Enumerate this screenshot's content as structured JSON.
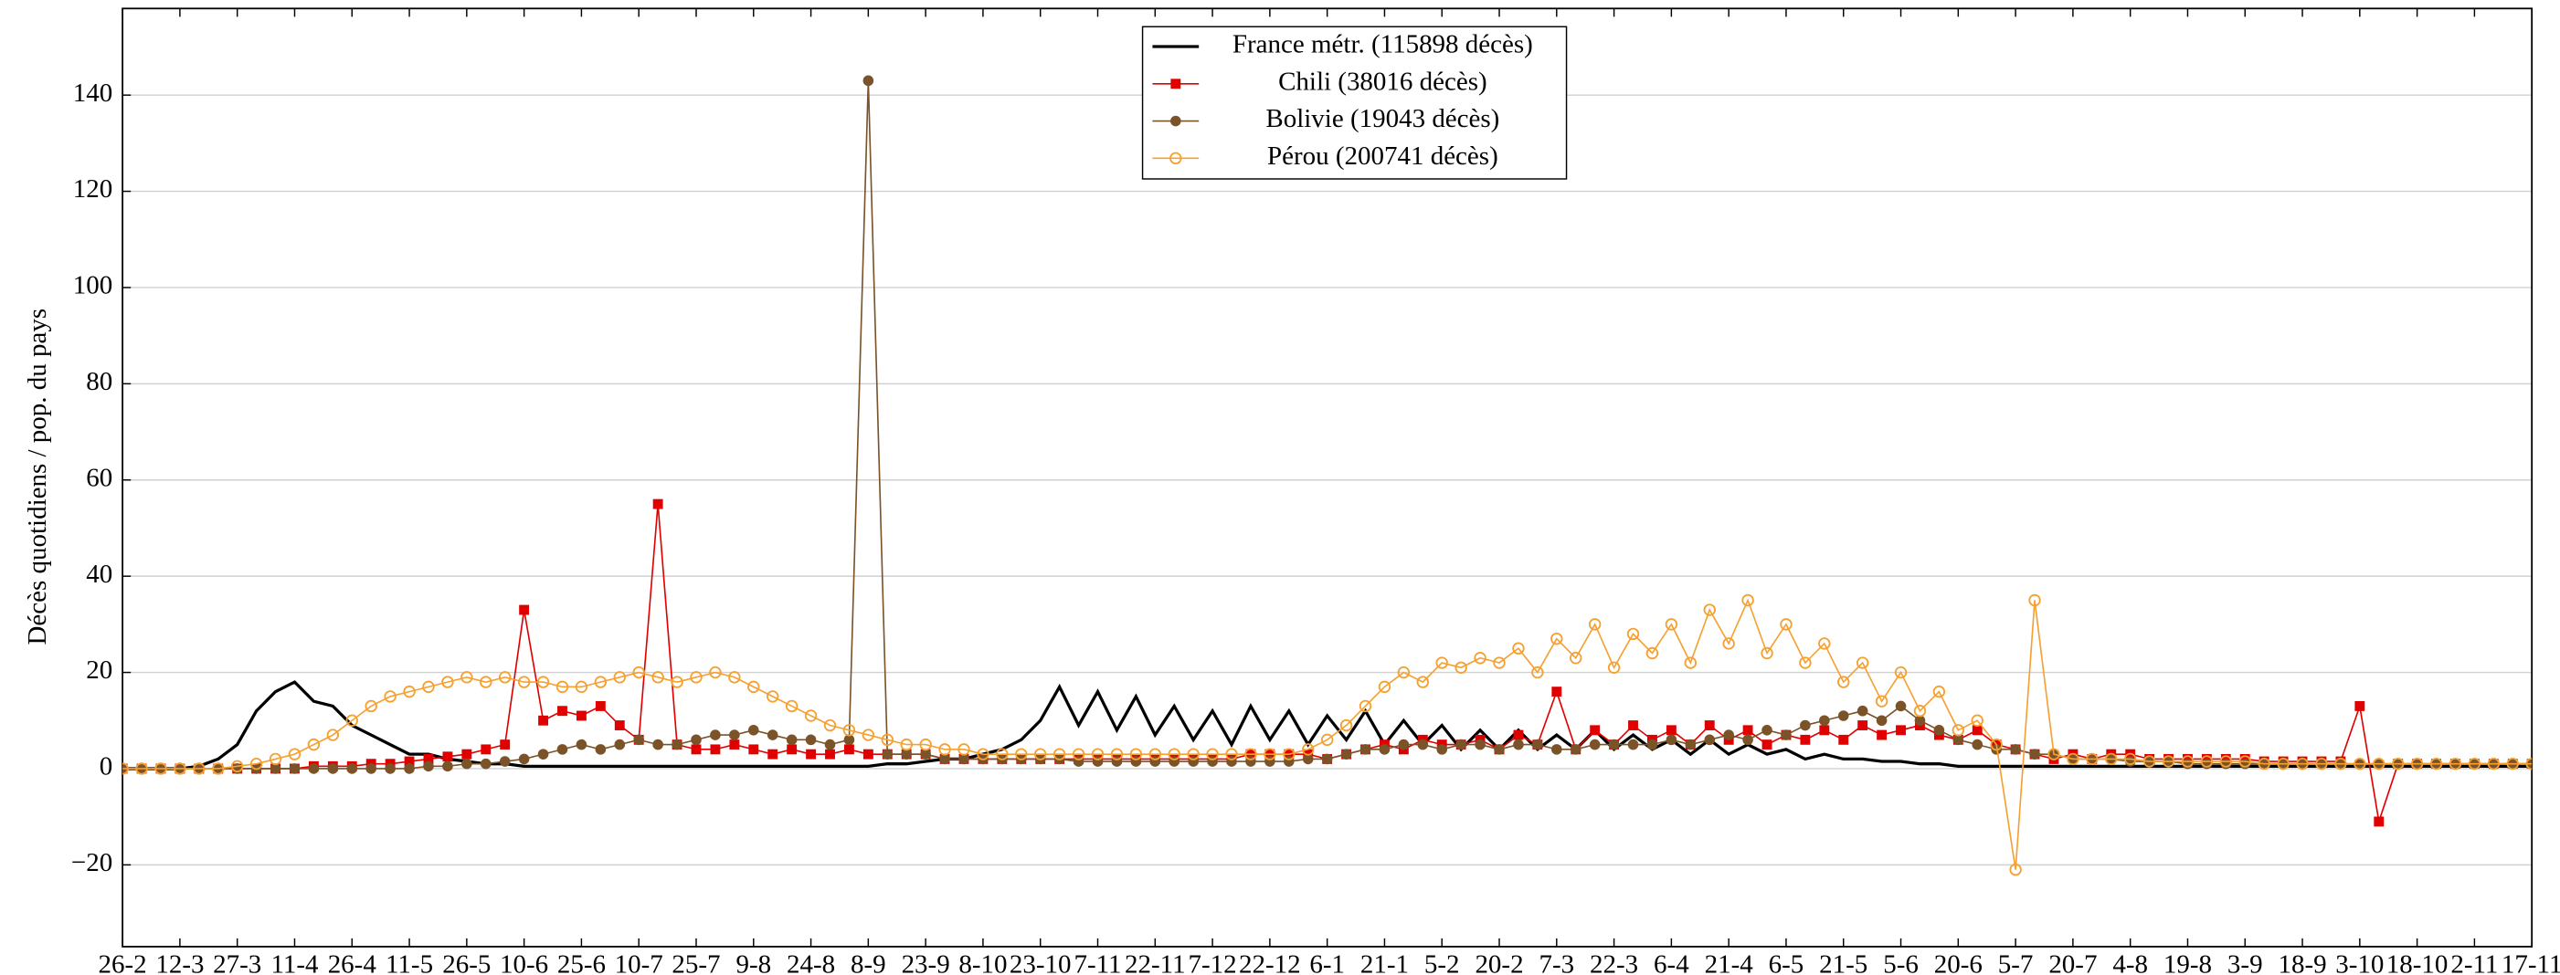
{
  "chart_data": {
    "type": "line",
    "y_label": "Décès quotidiens / pop. du pays",
    "x": [
      0,
      5,
      10,
      15,
      20,
      25,
      30,
      35,
      40,
      45,
      50,
      55,
      60,
      65,
      70,
      75,
      80,
      85,
      90,
      95,
      100,
      105,
      110,
      115,
      120,
      125,
      130,
      135,
      140,
      145,
      150,
      155,
      160,
      165,
      170,
      175,
      180,
      185,
      190,
      195,
      200,
      205,
      210,
      215,
      220,
      225,
      230,
      235,
      240,
      245,
      250,
      255,
      260,
      265,
      270,
      275,
      280,
      285,
      290,
      295,
      300,
      305,
      310,
      315,
      320,
      325,
      330,
      335,
      340,
      345,
      350,
      355,
      360,
      365,
      370,
      375,
      380,
      385,
      390,
      395,
      400,
      405,
      410,
      415,
      420,
      425,
      430,
      435,
      440,
      445,
      450,
      455,
      460,
      465,
      470,
      475,
      480,
      485,
      490,
      495,
      500,
      505,
      510,
      515,
      520,
      525,
      530,
      535,
      540,
      545,
      550,
      555,
      560,
      565,
      570,
      575,
      580,
      585,
      590,
      595,
      600,
      605,
      610,
      615,
      620,
      625,
      630
    ],
    "xlim": [
      0,
      630
    ],
    "xticks": [
      {
        "value": 0,
        "label": "26-2"
      },
      {
        "value": 15,
        "label": "12-3"
      },
      {
        "value": 30,
        "label": "27-3"
      },
      {
        "value": 45,
        "label": "11-4"
      },
      {
        "value": 60,
        "label": "26-4"
      },
      {
        "value": 75,
        "label": "11-5"
      },
      {
        "value": 90,
        "label": "26-5"
      },
      {
        "value": 105,
        "label": "10-6"
      },
      {
        "value": 120,
        "label": "25-6"
      },
      {
        "value": 135,
        "label": "10-7"
      },
      {
        "value": 150,
        "label": "25-7"
      },
      {
        "value": 165,
        "label": "9-8"
      },
      {
        "value": 180,
        "label": "24-8"
      },
      {
        "value": 195,
        "label": "8-9"
      },
      {
        "value": 210,
        "label": "23-9"
      },
      {
        "value": 225,
        "label": "8-10"
      },
      {
        "value": 240,
        "label": "23-10"
      },
      {
        "value": 255,
        "label": "7-11"
      },
      {
        "value": 270,
        "label": "22-11"
      },
      {
        "value": 285,
        "label": "7-12"
      },
      {
        "value": 300,
        "label": "22-12"
      },
      {
        "value": 315,
        "label": "6-1"
      },
      {
        "value": 330,
        "label": "21-1"
      },
      {
        "value": 345,
        "label": "5-2"
      },
      {
        "value": 360,
        "label": "20-2"
      },
      {
        "value": 375,
        "label": "7-3"
      },
      {
        "value": 390,
        "label": "22-3"
      },
      {
        "value": 405,
        "label": "6-4"
      },
      {
        "value": 420,
        "label": "21-4"
      },
      {
        "value": 435,
        "label": "6-5"
      },
      {
        "value": 450,
        "label": "21-5"
      },
      {
        "value": 465,
        "label": "5-6"
      },
      {
        "value": 480,
        "label": "20-6"
      },
      {
        "value": 495,
        "label": "5-7"
      },
      {
        "value": 510,
        "label": "20-7"
      },
      {
        "value": 525,
        "label": "4-8"
      },
      {
        "value": 540,
        "label": "19-8"
      },
      {
        "value": 555,
        "label": "3-9"
      },
      {
        "value": 570,
        "label": "18-9"
      },
      {
        "value": 585,
        "label": "3-10"
      },
      {
        "value": 600,
        "label": "18-10"
      },
      {
        "value": 615,
        "label": "2-11"
      },
      {
        "value": 630,
        "label": "17-11"
      }
    ],
    "ylim": [
      -37,
      158
    ],
    "yticks": [
      {
        "value": -20,
        "label": "−20"
      },
      0,
      20,
      40,
      60,
      80,
      100,
      120,
      140
    ],
    "grid": true,
    "legend": "top",
    "series": [
      {
        "name": "France métr. (115898 décès)",
        "color": "#000000",
        "marker": "none",
        "values": [
          0,
          0,
          0,
          0,
          0.5,
          2,
          5,
          12,
          16,
          18,
          14,
          13,
          9,
          7,
          5,
          3,
          3,
          2,
          1.5,
          1,
          1,
          0.5,
          0.5,
          0.5,
          0.5,
          0.5,
          0.5,
          0.5,
          0.5,
          0.5,
          0.5,
          0.5,
          0.5,
          0.5,
          0.5,
          0.5,
          0.5,
          0.5,
          0.5,
          0.5,
          1,
          1,
          1.5,
          2,
          2,
          3,
          4,
          6,
          10,
          17,
          9,
          16,
          8,
          15,
          7,
          13,
          6,
          12,
          5,
          13,
          6,
          12,
          5,
          11,
          6,
          12,
          5,
          10,
          5,
          9,
          4,
          8,
          4,
          8,
          4,
          7,
          4,
          8,
          4,
          7,
          4,
          6,
          3,
          6,
          3,
          5,
          3,
          4,
          2,
          3,
          2,
          2,
          1.5,
          1.5,
          1,
          1,
          0.5,
          0.5,
          0.5,
          0.5,
          0.5,
          0.5,
          0.5,
          0.5,
          0.5,
          0.5,
          0.5,
          0.5,
          0.5,
          0.5,
          0.5,
          0.5,
          0.5,
          0.5,
          0.5,
          0.5,
          0.5,
          0.5,
          0.5,
          0.5,
          0.5,
          0.5,
          0.5,
          0.5,
          0.5,
          0.5,
          0.5
        ]
      },
      {
        "name": "Chili (38016 décès)",
        "color": "#e00000",
        "marker": "square",
        "values": [
          0,
          0,
          0,
          0,
          0,
          0,
          0,
          0,
          0,
          0,
          0.5,
          0.5,
          0.5,
          1,
          1,
          1.5,
          2,
          2.5,
          3,
          4,
          5,
          33,
          10,
          12,
          11,
          13,
          9,
          6,
          55,
          5,
          4,
          4,
          5,
          4,
          3,
          4,
          3,
          3,
          4,
          3,
          3,
          3,
          3,
          2,
          2,
          2,
          2,
          2,
          2,
          2,
          2,
          2,
          2,
          2,
          2,
          2,
          2,
          2,
          2,
          3,
          3,
          3,
          3,
          2,
          3,
          4,
          5,
          4,
          6,
          5,
          5,
          6,
          4,
          7,
          5,
          16,
          4,
          8,
          5,
          9,
          6,
          8,
          5,
          9,
          6,
          8,
          5,
          7,
          6,
          8,
          6,
          9,
          7,
          8,
          9,
          7,
          6,
          8,
          5,
          4,
          3,
          2,
          3,
          2,
          3,
          3,
          2,
          2,
          2,
          2,
          2,
          2,
          1.5,
          1.5,
          1.5,
          1.5,
          1.5,
          13,
          -11,
          1,
          1,
          1,
          1,
          1,
          1,
          1,
          1
        ]
      },
      {
        "name": "Bolivie (19043 décès)",
        "color": "#7b5329",
        "marker": "circle",
        "values": [
          0,
          0,
          0,
          0,
          0,
          0,
          0,
          0,
          0,
          0,
          0,
          0,
          0,
          0,
          0,
          0,
          0.5,
          0.5,
          1,
          1,
          1.5,
          2,
          3,
          4,
          5,
          4,
          5,
          6,
          5,
          5,
          6,
          7,
          7,
          8,
          7,
          6,
          6,
          5,
          6,
          143,
          3,
          3,
          3,
          2,
          2,
          2,
          2,
          2,
          2,
          2,
          1.5,
          1.5,
          1.5,
          1.5,
          1.5,
          1.5,
          1.5,
          1.5,
          1.5,
          1.5,
          1.5,
          1.5,
          2,
          2,
          3,
          4,
          4,
          5,
          5,
          4,
          5,
          5,
          4,
          5,
          5,
          4,
          4,
          5,
          5,
          5,
          5,
          6,
          5,
          6,
          7,
          6,
          8,
          7,
          9,
          10,
          11,
          12,
          10,
          13,
          10,
          8,
          6,
          5,
          4,
          4,
          3,
          3,
          2,
          2,
          2,
          1.5,
          1.5,
          1.5,
          1,
          1,
          1,
          1,
          1,
          1,
          1,
          1,
          1,
          1,
          1,
          1,
          1,
          1,
          1,
          1,
          1,
          1,
          1
        ]
      },
      {
        "name": "Pérou (200741 décès)",
        "color": "#f5a030",
        "marker": "open-circle",
        "values": [
          0,
          0,
          0,
          0,
          0,
          0,
          0.5,
          1,
          2,
          3,
          5,
          7,
          10,
          13,
          15,
          16,
          17,
          18,
          19,
          18,
          19,
          18,
          18,
          17,
          17,
          18,
          19,
          20,
          19,
          18,
          19,
          20,
          19,
          17,
          15,
          13,
          11,
          9,
          8,
          7,
          6,
          5,
          5,
          4,
          4,
          3,
          3,
          3,
          3,
          3,
          3,
          3,
          3,
          3,
          3,
          3,
          3,
          3,
          3,
          3,
          3,
          3,
          4,
          6,
          9,
          13,
          17,
          20,
          18,
          22,
          21,
          23,
          22,
          25,
          20,
          27,
          23,
          30,
          21,
          28,
          24,
          30,
          22,
          33,
          26,
          35,
          24,
          30,
          22,
          26,
          18,
          22,
          14,
          20,
          12,
          16,
          8,
          10,
          5,
          -21,
          35,
          3,
          2,
          2,
          2,
          2,
          1.5,
          1.5,
          1.5,
          1.5,
          1.5,
          1.5,
          1,
          1,
          1,
          1,
          1,
          1,
          1,
          1,
          1,
          1,
          1,
          1,
          1,
          1,
          1
        ]
      }
    ]
  }
}
